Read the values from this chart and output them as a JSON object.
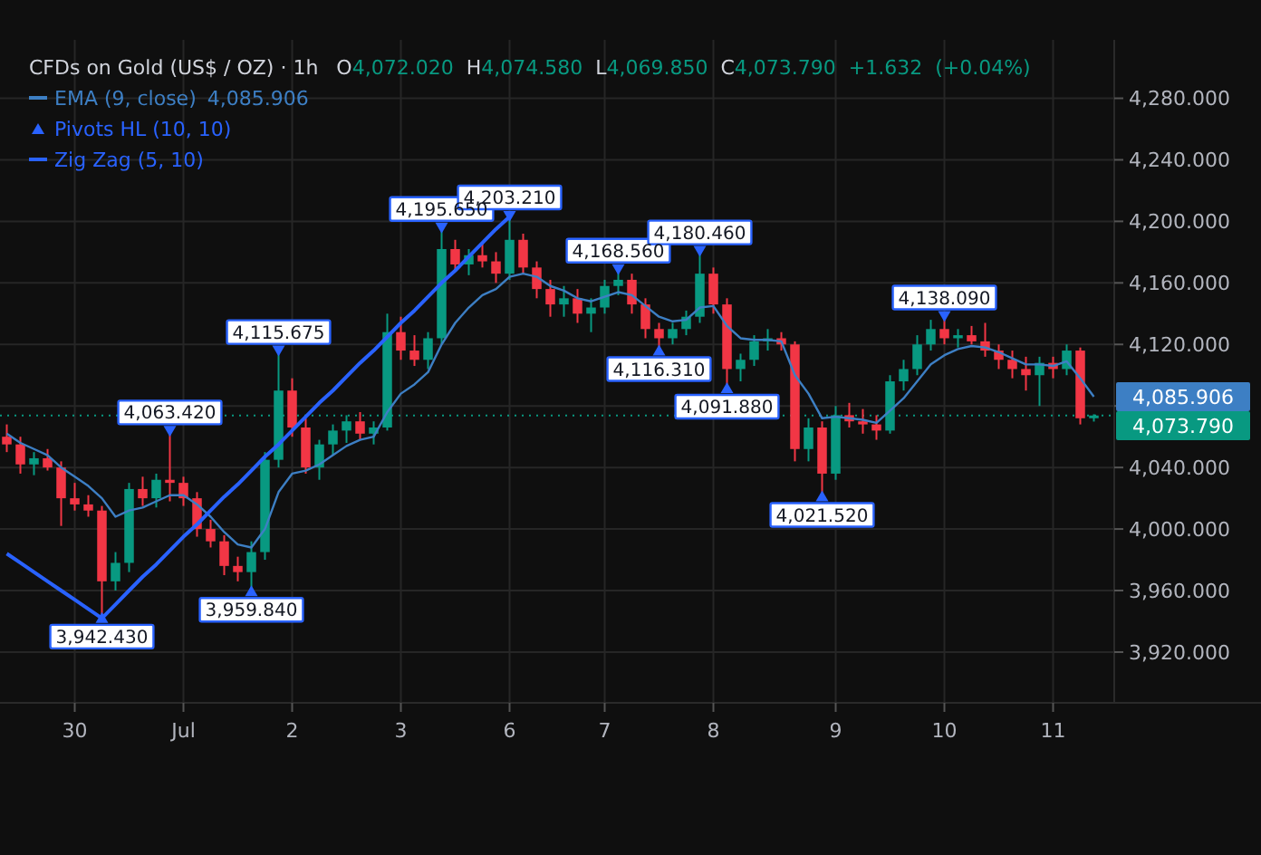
{
  "chart_data": {
    "type": "candlestick",
    "title": "CFDs on Gold (US$ / OZ) · 1h",
    "subtitle": "O4,072.020 H4,074.580 L4,069.850 C4,073.790 +1.632 (+0.04%)",
    "categories": [
      null,
      null,
      null,
      null,
      null,
      "30",
      null,
      null,
      null,
      null,
      null,
      null,
      null,
      "Jul",
      null,
      null,
      null,
      null,
      null,
      null,
      null,
      "2",
      null,
      null,
      null,
      null,
      null,
      null,
      null,
      "3",
      null,
      null,
      null,
      null,
      null,
      null,
      null,
      "6",
      null,
      null,
      null,
      null,
      null,
      null,
      "7",
      null,
      null,
      null,
      null,
      null,
      null,
      null,
      "8",
      null,
      null,
      null,
      null,
      null,
      null,
      null,
      null,
      "9",
      null,
      null,
      null,
      null,
      null,
      null,
      null,
      "10",
      null,
      null,
      null,
      null,
      null,
      null,
      null,
      "11",
      null,
      null,
      null
    ],
    "ohlc": [
      [
        4060,
        4068,
        4050,
        4055
      ],
      [
        4055,
        4060,
        4036,
        4042
      ],
      [
        4042,
        4050,
        4035,
        4046
      ],
      [
        4046,
        4052,
        4038,
        4040
      ],
      [
        4040,
        4044,
        4002,
        4020
      ],
      [
        4020,
        4030,
        4012,
        4016
      ],
      [
        4016,
        4022,
        4008,
        4012
      ],
      [
        4012,
        4015,
        3942.43,
        3966
      ],
      [
        3966,
        3985,
        3960,
        3978
      ],
      [
        3978,
        4030,
        3972,
        4026
      ],
      [
        4026,
        4034,
        4015,
        4020
      ],
      [
        4020,
        4036,
        4014,
        4032
      ],
      [
        4032,
        4063.42,
        4018,
        4030
      ],
      [
        4030,
        4034,
        4015,
        4020
      ],
      [
        4020,
        4024,
        3995,
        4000
      ],
      [
        4000,
        4006,
        3988,
        3992
      ],
      [
        3992,
        3996,
        3970,
        3976
      ],
      [
        3976,
        3982,
        3966,
        3972
      ],
      [
        3972,
        3992,
        3959.84,
        3985
      ],
      [
        3985,
        4050,
        3980,
        4045
      ],
      [
        4045,
        4115.675,
        4040,
        4090
      ],
      [
        4090,
        4098,
        4060,
        4066
      ],
      [
        4066,
        4072,
        4036,
        4040
      ],
      [
        4040,
        4058,
        4032,
        4055
      ],
      [
        4055,
        4068,
        4048,
        4064
      ],
      [
        4064,
        4074,
        4056,
        4070
      ],
      [
        4070,
        4076,
        4058,
        4062
      ],
      [
        4062,
        4070,
        4055,
        4066
      ],
      [
        4066,
        4140,
        4064,
        4128
      ],
      [
        4128,
        4138,
        4110,
        4116
      ],
      [
        4116,
        4126,
        4106,
        4110
      ],
      [
        4110,
        4128,
        4104,
        4124
      ],
      [
        4124,
        4195.65,
        4120,
        4182
      ],
      [
        4182,
        4188,
        4168,
        4172
      ],
      [
        4172,
        4182,
        4165,
        4178
      ],
      [
        4178,
        4186,
        4170,
        4174
      ],
      [
        4174,
        4180,
        4160,
        4166
      ],
      [
        4166,
        4203.21,
        4162,
        4188
      ],
      [
        4188,
        4192,
        4166,
        4170
      ],
      [
        4170,
        4174,
        4150,
        4156
      ],
      [
        4156,
        4162,
        4138,
        4146
      ],
      [
        4146,
        4158,
        4138,
        4150
      ],
      [
        4150,
        4156,
        4134,
        4140
      ],
      [
        4140,
        4150,
        4128,
        4144
      ],
      [
        4144,
        4162,
        4140,
        4158
      ],
      [
        4158,
        4168.56,
        4152,
        4162
      ],
      [
        4162,
        4166,
        4140,
        4146
      ],
      [
        4146,
        4150,
        4124,
        4130
      ],
      [
        4130,
        4134,
        4116.31,
        4124
      ],
      [
        4124,
        4134,
        4120,
        4130
      ],
      [
        4130,
        4142,
        4126,
        4138
      ],
      [
        4138,
        4180.46,
        4134,
        4166
      ],
      [
        4166,
        4170,
        4140,
        4146
      ],
      [
        4146,
        4150,
        4091.88,
        4104
      ],
      [
        4104,
        4114,
        4096,
        4110
      ],
      [
        4110,
        4126,
        4106,
        4122
      ],
      [
        4122,
        4130,
        4116,
        4124
      ],
      [
        4124,
        4128,
        4116,
        4120
      ],
      [
        4120,
        4122,
        4044,
        4052
      ],
      [
        4052,
        4072,
        4044,
        4066
      ],
      [
        4066,
        4070,
        4021.52,
        4036
      ],
      [
        4036,
        4080,
        4032,
        4074
      ],
      [
        4074,
        4082,
        4066,
        4070
      ],
      [
        4070,
        4078,
        4062,
        4068
      ],
      [
        4068,
        4074,
        4058,
        4064
      ],
      [
        4064,
        4100,
        4062,
        4096
      ],
      [
        4096,
        4110,
        4090,
        4104
      ],
      [
        4104,
        4126,
        4100,
        4120
      ],
      [
        4120,
        4136,
        4116,
        4130
      ],
      [
        4130,
        4138.09,
        4120,
        4124
      ],
      [
        4124,
        4130,
        4118,
        4126
      ],
      [
        4126,
        4132,
        4120,
        4122
      ],
      [
        4122,
        4134,
        4112,
        4116
      ],
      [
        4116,
        4120,
        4104,
        4110
      ],
      [
        4110,
        4116,
        4098,
        4104
      ],
      [
        4104,
        4112,
        4090,
        4100
      ],
      [
        4100,
        4112,
        4080,
        4108
      ],
      [
        4108,
        4112,
        4098,
        4104
      ],
      [
        4104,
        4120,
        4100,
        4116
      ],
      [
        4116,
        4118,
        4068,
        4072
      ],
      [
        4072.02,
        4074.58,
        4069.85,
        4073.79
      ]
    ],
    "colors": [
      "#f23645",
      "#f23645",
      "#089981",
      "#f23645",
      "#f23645",
      "#f23645",
      "#f23645",
      "#f23645",
      "#089981",
      "#089981",
      "#f23645",
      "#089981",
      "#f23645",
      "#f23645",
      "#f23645",
      "#f23645",
      "#f23645",
      "#f23645",
      "#089981",
      "#089981",
      "#089981",
      "#f23645",
      "#f23645",
      "#089981",
      "#089981",
      "#089981",
      "#f23645",
      "#089981",
      "#089981",
      "#f23645",
      "#f23645",
      "#089981",
      "#089981",
      "#f23645",
      "#089981",
      "#f23645",
      "#f23645",
      "#089981",
      "#f23645",
      "#f23645",
      "#f23645",
      "#089981",
      "#f23645",
      "#089981",
      "#089981",
      "#089981",
      "#f23645",
      "#f23645",
      "#f23645",
      "#089981",
      "#089981",
      "#089981",
      "#f23645",
      "#f23645",
      "#089981",
      "#089981",
      "#089981",
      "#f23645",
      "#f23645",
      "#089981",
      "#f23645",
      "#089981",
      "#f23645",
      "#f23645",
      "#f23645",
      "#089981",
      "#089981",
      "#089981",
      "#089981",
      "#f23645",
      "#089981",
      "#f23645",
      "#f23645",
      "#f23645",
      "#f23645",
      "#f23645",
      "#089981",
      "#f23645",
      "#089981",
      "#f23645",
      "#089981"
    ],
    "series": [
      {
        "type": "line",
        "name": "EMA (9, close)",
        "color": "#3d7fc4",
        "values": [
          4062,
          4056,
          4052,
          4048,
          4040,
          4034,
          4028,
          4020,
          4008,
          4012,
          4014,
          4018,
          4022,
          4022,
          4016,
          4008,
          3998,
          3990,
          3988,
          4000,
          4024,
          4036,
          4038,
          4042,
          4048,
          4054,
          4058,
          4060,
          4076,
          4088,
          4094,
          4102,
          4120,
          4134,
          4144,
          4152,
          4156,
          4164,
          4166,
          4164,
          4158,
          4155,
          4150,
          4148,
          4151,
          4154,
          4152,
          4145,
          4138,
          4135,
          4136,
          4144,
          4145,
          4132,
          4124,
          4123,
          4123,
          4122,
          4100,
          4088,
          4072,
          4073,
          4072,
          4071,
          4069,
          4077,
          4085,
          4096,
          4107,
          4113,
          4117,
          4119,
          4118,
          4115,
          4111,
          4107,
          4107,
          4106,
          4109,
          4098,
          4086
        ]
      },
      {
        "type": "scatter",
        "name": "Pivots HL (10, 10)",
        "color": "#2962ff",
        "values": [
          null,
          null,
          null,
          null,
          null,
          null,
          null,
          3942.43,
          null,
          null,
          null,
          null,
          4063.42,
          null,
          null,
          null,
          null,
          null,
          3959.84,
          null,
          4115.675,
          null,
          null,
          null,
          null,
          null,
          null,
          null,
          null,
          null,
          null,
          null,
          4195.65,
          null,
          null,
          null,
          null,
          4203.21,
          null,
          null,
          null,
          null,
          null,
          null,
          null,
          4168.56,
          null,
          null,
          4116.31,
          null,
          null,
          4180.46,
          null,
          4091.88,
          null,
          null,
          null,
          null,
          null,
          null,
          4021.52,
          null,
          null,
          null,
          null,
          null,
          null,
          null,
          null,
          4138.09,
          null,
          null,
          null,
          null,
          null,
          null,
          null,
          null,
          null,
          null,
          null
        ],
        "value_labels": [
          null,
          null,
          null,
          null,
          null,
          null,
          null,
          "3,942.430",
          null,
          null,
          null,
          null,
          "4,063.420",
          null,
          null,
          null,
          null,
          null,
          "3,959.840",
          null,
          "4,115.675",
          null,
          null,
          null,
          null,
          null,
          null,
          null,
          null,
          null,
          null,
          null,
          "4,195.650",
          null,
          null,
          null,
          null,
          "4,203.210",
          null,
          null,
          null,
          null,
          null,
          null,
          null,
          "4,168.560",
          null,
          null,
          "4,116.310",
          null,
          null,
          "4,180.460",
          null,
          "4,091.880",
          null,
          null,
          null,
          null,
          null,
          null,
          "4,021.520",
          null,
          null,
          null,
          null,
          null,
          null,
          null,
          null,
          "4,138.090",
          null,
          null,
          null,
          null,
          null,
          null,
          null,
          null,
          null,
          null,
          null
        ]
      },
      {
        "type": "line",
        "name": "Zig Zag (5, 10)",
        "color": "#2962ff",
        "values": [
          3984,
          3978,
          3972,
          3966,
          3960,
          3954,
          3948,
          3942,
          3951,
          3960,
          3969,
          3977,
          3986,
          3995,
          4003,
          4012,
          4021,
          4029,
          4038,
          4047,
          4055,
          4064,
          4073,
          4082,
          4090,
          4099,
          4108,
          4116,
          4125,
          4134,
          4142,
          4151,
          4160,
          4168,
          4177,
          4186,
          4195,
          4203,
          null,
          null,
          null,
          null,
          null,
          null,
          null,
          null,
          null,
          null,
          null,
          null,
          null,
          null,
          null,
          null,
          null,
          null,
          null,
          null,
          null,
          null,
          null,
          null,
          null,
          null,
          null,
          null,
          null,
          null,
          null,
          null,
          null,
          null,
          null,
          null,
          null,
          null,
          null,
          null,
          null,
          null,
          null
        ]
      }
    ],
    "annotations": [
      "4,085.906"
    ],
    "ref_lines": [
      {
        "axis": "y",
        "value": 4073.79,
        "label": "4,073.790",
        "color": "#089981",
        "line_style": "dotted"
      }
    ],
    "ylim": [
      3887,
      4318
    ],
    "yticks": [
      {
        "value": 3920,
        "label": "3,920.000"
      },
      {
        "value": 3960,
        "label": "3,960.000"
      },
      {
        "value": 4000,
        "label": "4,000.000"
      },
      {
        "value": 4040,
        "label": "4,040.000"
      },
      {
        "value": 4080,
        "label": null
      },
      {
        "value": 4120,
        "label": "4,120.000"
      },
      {
        "value": 4160,
        "label": "4,160.000"
      },
      {
        "value": 4200,
        "label": "4,200.000"
      },
      {
        "value": 4240,
        "label": "4,240.000"
      },
      {
        "value": 4280,
        "label": "4,280.000"
      }
    ],
    "grid": true,
    "legend": "top left"
  }
}
